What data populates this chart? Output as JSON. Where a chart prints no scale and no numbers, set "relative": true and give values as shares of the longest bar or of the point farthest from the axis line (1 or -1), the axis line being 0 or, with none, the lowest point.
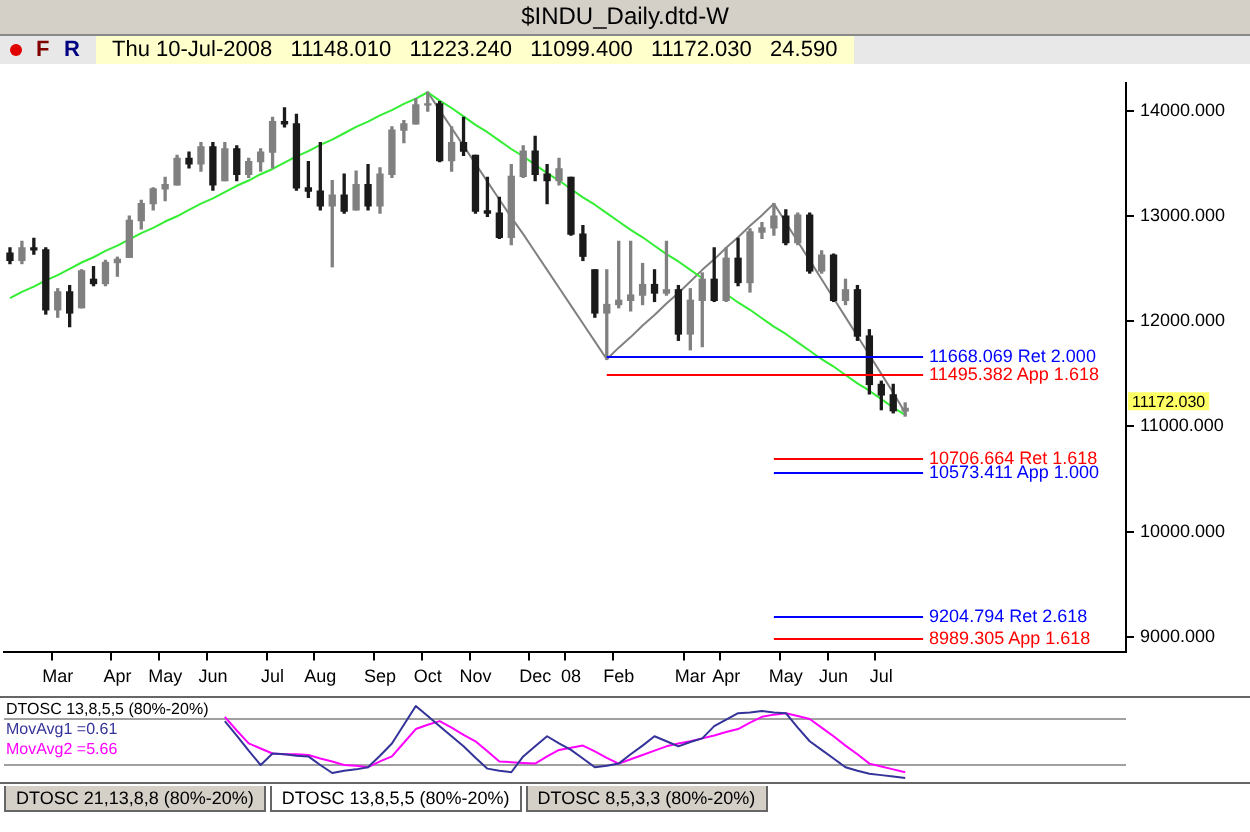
{
  "chart_data": [
    {
      "type": "candlestick",
      "title": "$INDU_Daily.dtd-W",
      "subtitle": "Thu 10-Jul-2008   11148.010   11223.240   11099.400   11172.030   24.590",
      "categories": [
        null,
        null,
        null,
        null,
        "Mar",
        null,
        null,
        null,
        null,
        "Apr",
        null,
        null,
        null,
        "May",
        null,
        null,
        null,
        "Jun",
        null,
        null,
        null,
        null,
        "Jul",
        null,
        null,
        null,
        "Aug",
        null,
        null,
        null,
        null,
        "Sep",
        null,
        null,
        null,
        "Oct",
        null,
        null,
        null,
        "Nov",
        null,
        null,
        null,
        null,
        "Dec",
        null,
        null,
        "08",
        null,
        null,
        null,
        "Feb",
        null,
        null,
        null,
        null,
        null,
        "Mar",
        null,
        null,
        "Apr",
        null,
        null,
        null,
        null,
        "May",
        null,
        null,
        null,
        "Jun",
        null,
        null,
        null,
        "Jul",
        null,
        null,
        null,
        null,
        null,
        null,
        null,
        null,
        null,
        null,
        null,
        null,
        null,
        null,
        null,
        null,
        null,
        null,
        null,
        null
      ],
      "ohlc": [
        [
          12650,
          12700,
          12550,
          12580
        ],
        [
          12580,
          12760,
          12550,
          12700
        ],
        [
          12700,
          12790,
          12640,
          12680
        ],
        [
          12680,
          12700,
          12070,
          12110
        ],
        [
          12110,
          12310,
          12040,
          12280
        ],
        [
          12280,
          12340,
          11950,
          12080
        ],
        [
          12130,
          12490,
          12130,
          12480
        ],
        [
          12400,
          12520,
          12340,
          12360
        ],
        [
          12360,
          12580,
          12340,
          12560
        ],
        [
          12560,
          12610,
          12430,
          12590
        ],
        [
          12610,
          13000,
          12610,
          12960
        ],
        [
          12960,
          13150,
          12880,
          13120
        ],
        [
          13120,
          13270,
          13060,
          13260
        ],
        [
          13260,
          13370,
          13150,
          13300
        ],
        [
          13300,
          13580,
          13300,
          13550
        ],
        [
          13550,
          13610,
          13460,
          13500
        ],
        [
          13500,
          13700,
          13430,
          13660
        ],
        [
          13660,
          13700,
          13250,
          13300
        ],
        [
          13340,
          13700,
          13340,
          13640
        ],
        [
          13640,
          13670,
          13340,
          13400
        ],
        [
          13400,
          13550,
          13370,
          13520
        ],
        [
          13520,
          13640,
          13430,
          13610
        ],
        [
          13610,
          13940,
          13460,
          13900
        ],
        [
          13900,
          14030,
          13850,
          13880
        ],
        [
          13880,
          13970,
          13250,
          13270
        ],
        [
          13270,
          13520,
          13180,
          13240
        ],
        [
          13240,
          13700,
          13060,
          13100
        ],
        [
          13100,
          13340,
          12520,
          13200
        ],
        [
          13200,
          13400,
          13030,
          13050
        ],
        [
          13060,
          13430,
          13060,
          13300
        ],
        [
          13300,
          13490,
          13060,
          13100
        ],
        [
          13100,
          13460,
          13030,
          13400
        ],
        [
          13400,
          13850,
          13370,
          13820
        ],
        [
          13820,
          13910,
          13700,
          13880
        ],
        [
          13880,
          14120,
          13880,
          14060
        ],
        [
          14060,
          14180,
          14000,
          14070
        ],
        [
          14070,
          14090,
          13520,
          13530
        ],
        [
          13530,
          13850,
          13430,
          13700
        ],
        [
          13700,
          13940,
          13580,
          13620
        ],
        [
          13580,
          13580,
          13030,
          13050
        ],
        [
          13050,
          13370,
          13000,
          13030
        ],
        [
          13030,
          13180,
          12790,
          12800
        ],
        [
          12800,
          13490,
          12730,
          13380
        ],
        [
          13380,
          13670,
          13370,
          13620
        ],
        [
          13620,
          13760,
          13340,
          13400
        ],
        [
          13400,
          13490,
          13120,
          13340
        ],
        [
          13340,
          13550,
          13300,
          13450
        ],
        [
          13370,
          13370,
          12820,
          12830
        ],
        [
          12830,
          12910,
          12580,
          12620
        ],
        [
          12490,
          12490,
          12040,
          12080
        ],
        [
          12080,
          12490,
          11640,
          12160
        ],
        [
          12160,
          12760,
          12130,
          12200
        ],
        [
          12200,
          12760,
          12100,
          12250
        ],
        [
          12250,
          12550,
          12160,
          12350
        ],
        [
          12350,
          12490,
          12190,
          12270
        ],
        [
          12270,
          12760,
          12250,
          12300
        ],
        [
          12300,
          12340,
          11820,
          11880
        ],
        [
          11880,
          12310,
          11730,
          12200
        ],
        [
          12200,
          12460,
          11760,
          12400
        ],
        [
          12400,
          12700,
          12190,
          12200
        ],
        [
          12200,
          12700,
          12190,
          12600
        ],
        [
          12600,
          12790,
          12340,
          12370
        ],
        [
          12370,
          12880,
          12280,
          12850
        ],
        [
          12850,
          12940,
          12790,
          12890
        ],
        [
          12890,
          13120,
          12820,
          13000
        ],
        [
          13000,
          13060,
          12730,
          12750
        ],
        [
          12750,
          13030,
          12730,
          13010
        ],
        [
          13010,
          13030,
          12460,
          12480
        ],
        [
          12480,
          12670,
          12460,
          12630
        ],
        [
          12630,
          12640,
          12190,
          12200
        ],
        [
          12200,
          12400,
          12160,
          12300
        ],
        [
          12300,
          12340,
          11820,
          11860
        ],
        [
          11860,
          11920,
          11310,
          11400
        ],
        [
          11400,
          11430,
          11160,
          11300
        ],
        [
          11300,
          11400,
          11130,
          11150
        ],
        [
          11148.01,
          11223.24,
          11099.4,
          11172.03
        ],
        null,
        null,
        null,
        null,
        null,
        null,
        null,
        null,
        null,
        null,
        null,
        null,
        null,
        null,
        null,
        null,
        null,
        null
      ],
      "colors": [
        "#1a1a1a",
        "#808080",
        "#1a1a1a",
        "#1a1a1a",
        "#808080",
        "#1a1a1a",
        "#808080",
        "#1a1a1a",
        "#808080",
        "#808080",
        "#808080",
        "#808080",
        "#808080",
        "#808080",
        "#808080",
        "#1a1a1a",
        "#808080",
        "#1a1a1a",
        "#808080",
        "#1a1a1a",
        "#808080",
        "#808080",
        "#808080",
        "#1a1a1a",
        "#1a1a1a",
        "#1a1a1a",
        "#1a1a1a",
        "#808080",
        "#1a1a1a",
        "#808080",
        "#1a1a1a",
        "#808080",
        "#808080",
        "#808080",
        "#808080",
        "#808080",
        "#1a1a1a",
        "#808080",
        "#1a1a1a",
        "#1a1a1a",
        "#1a1a1a",
        "#1a1a1a",
        "#808080",
        "#808080",
        "#1a1a1a",
        "#1a1a1a",
        "#808080",
        "#1a1a1a",
        "#1a1a1a",
        "#1a1a1a",
        "#808080",
        "#808080",
        "#808080",
        "#808080",
        "#1a1a1a",
        "#808080",
        "#1a1a1a",
        "#808080",
        "#808080",
        "#1a1a1a",
        "#808080",
        "#1a1a1a",
        "#808080",
        "#808080",
        "#808080",
        "#1a1a1a",
        "#808080",
        "#1a1a1a",
        "#808080",
        "#1a1a1a",
        "#808080",
        "#1a1a1a",
        "#1a1a1a",
        "#1a1a1a",
        "#1a1a1a",
        "#808080",
        null,
        null,
        null,
        null,
        null,
        null,
        null,
        null,
        null,
        null,
        null,
        null,
        null,
        null,
        null,
        null,
        null,
        null
      ],
      "ylim": [
        8850,
        14270
      ],
      "yticks": [
        {
          "value": 9000,
          "label": "9000.000"
        },
        {
          "value": 10000,
          "label": "10000.000"
        },
        {
          "value": 11000,
          "label": "11000.000"
        },
        {
          "value": 12000,
          "label": "12000.000"
        },
        {
          "value": 13000,
          "label": "13000.000"
        },
        {
          "value": 14000,
          "label": "14000.000"
        }
      ],
      "series": [
        {
          "type": "line",
          "color": "#33ee33",
          "values": [
            12220,
            12280,
            12330,
            12390,
            12440,
            12500,
            12560,
            12610,
            12670,
            12720,
            12780,
            12840,
            12890,
            12950,
            13000,
            13060,
            13120,
            13170,
            13230,
            13290,
            13340,
            13400,
            13450,
            13510,
            13570,
            13620,
            13680,
            13730,
            13790,
            13850,
            13900,
            13960,
            14010,
            14070,
            14120,
            14180,
            14100,
            14030,
            13950,
            13870,
            13800,
            13720,
            13640,
            13570,
            13490,
            13410,
            13340,
            13260,
            13180,
            13110,
            13030,
            12950,
            12870,
            12800,
            12720,
            12640,
            12570,
            12490,
            12410,
            null,
            12260,
            12180,
            12110,
            12030,
            11950,
            11880,
            11800,
            11720,
            11640,
            11570,
            11490,
            11410,
            11340,
            11260,
            11180,
            11110,
            null,
            null,
            null,
            null,
            null,
            null,
            null,
            null,
            null,
            null,
            null,
            null,
            null,
            null,
            null,
            null,
            null,
            null
          ]
        },
        {
          "type": "line",
          "color": "#808080",
          "values": [
            null,
            null,
            null,
            null,
            null,
            null,
            null,
            null,
            null,
            null,
            null,
            null,
            null,
            null,
            null,
            null,
            null,
            null,
            null,
            null,
            null,
            null,
            null,
            null,
            null,
            null,
            null,
            null,
            null,
            null,
            null,
            null,
            null,
            null,
            null,
            14180,
            14010,
            13840,
            13670,
            13500,
            13330,
            13160,
            12990,
            12830,
            12660,
            12490,
            12320,
            12150,
            11980,
            11810,
            11640,
            11750,
            11850,
            11960,
            12060,
            12170,
            12270,
            12380,
            12490,
            12590,
            12700,
            12800,
            12910,
            13010,
            13120,
            12940,
            12760,
            12580,
            12400,
            12220,
            12040,
            11860,
            11680,
            11500,
            11320,
            11130,
            null,
            null,
            null,
            null,
            null,
            null,
            null,
            null,
            null,
            null,
            null,
            null,
            null,
            null,
            null,
            null,
            null,
            null
          ]
        }
      ],
      "ref_lines": [
        {
          "axis": "y",
          "value": 11668.069,
          "label": "11668.069 Ret 2.000",
          "color": "#0000ff"
        },
        {
          "axis": "y",
          "value": 11495.382,
          "label": "11495.382 App 1.618",
          "color": "#ff0000"
        },
        {
          "axis": "y",
          "value": 10706.664,
          "label": "10706.664 Ret 1.618",
          "color": "#ff0000"
        },
        {
          "axis": "y",
          "value": 10573.411,
          "label": "10573.411 App 1.000",
          "color": "#0000ff"
        },
        {
          "axis": "y",
          "value": 9204.794,
          "label": "9204.794 Ret 2.618",
          "color": "#0000ff"
        },
        {
          "axis": "y",
          "value": 8989.305,
          "label": "8989.305 App 1.618",
          "color": "#ff0000"
        }
      ],
      "annotations": [
        "F",
        "R",
        "11172.030"
      ]
    },
    {
      "type": "line",
      "title": "DTOSC 13,8,5,5 (80%-20%)",
      "relative": true,
      "legend": "top left",
      "categories": [
        null,
        null,
        null,
        null,
        null,
        null,
        null,
        null,
        null,
        null,
        null,
        null,
        null,
        null,
        null,
        null,
        null,
        null,
        null,
        null,
        null,
        null,
        null,
        null,
        null,
        null,
        null,
        null,
        null,
        null,
        null,
        null,
        null,
        null,
        null,
        null,
        null,
        null,
        null,
        null,
        null,
        null,
        null,
        null,
        null,
        null,
        null,
        null,
        null,
        null,
        null,
        null,
        null,
        null,
        null,
        null,
        null,
        null,
        null,
        null,
        null,
        null,
        null,
        null,
        null,
        null,
        null,
        null,
        null,
        null,
        null,
        null,
        null,
        null,
        null,
        null,
        null,
        null,
        null,
        null,
        null,
        null,
        null,
        null,
        null,
        null,
        null,
        null,
        null,
        null,
        null,
        null,
        null,
        null
      ],
      "series": [
        {
          "name": "MovAvg1 =0.61",
          "color": "#333399",
          "values": [
            null,
            null,
            null,
            null,
            null,
            null,
            null,
            null,
            null,
            null,
            null,
            null,
            null,
            null,
            null,
            null,
            null,
            null,
            0.79,
            0.59,
            0.38,
            0.18,
            0.34,
            0.33,
            0.31,
            0.3,
            0.18,
            0.07,
            0.1,
            0.12,
            0.15,
            0.31,
            0.48,
            0.74,
            1,
            0.86,
            0.72,
            0.58,
            0.44,
            0.28,
            0.13,
            0.1,
            0.08,
            0.3,
            0.44,
            0.58,
            0.48,
            0.39,
            0.27,
            0.15,
            0.17,
            0.2,
            0.33,
            0.45,
            0.58,
            0.51,
            0.44,
            0.5,
            0.55,
            0.72,
            0.81,
            0.9,
            0.91,
            0.93,
            0.91,
            0.9,
            0.7,
            0.51,
            0.39,
            0.27,
            0.15,
            0.1,
            0.06,
            0.04,
            0.02,
            0,
            null,
            null,
            null,
            null,
            null,
            null,
            null,
            null,
            null,
            null,
            null,
            null,
            null,
            null,
            null,
            null,
            null,
            null
          ]
        },
        {
          "name": "MovAvg2 =5.66",
          "color": "#ff00ff",
          "values": [
            null,
            null,
            null,
            null,
            null,
            null,
            null,
            null,
            null,
            null,
            null,
            null,
            null,
            null,
            null,
            null,
            null,
            null,
            0.85,
            0.66,
            0.48,
            0.41,
            0.34,
            0.33,
            0.33,
            0.32,
            0.27,
            0.23,
            0.18,
            0.17,
            0.15,
            0.23,
            0.3,
            0.49,
            0.68,
            0.74,
            0.79,
            0.7,
            0.6,
            0.51,
            0.37,
            0.23,
            0.22,
            0.21,
            0.2,
            0.3,
            0.39,
            0.42,
            0.45,
            0.37,
            0.28,
            0.2,
            0.26,
            0.32,
            0.38,
            0.44,
            0.48,
            0.51,
            0.55,
            0.59,
            0.64,
            0.68,
            0.77,
            0.85,
            0.88,
            0.9,
            0.86,
            0.82,
            0.7,
            0.58,
            0.45,
            0.33,
            0.2,
            0.16,
            0.12,
            0.08,
            null,
            null,
            null,
            null,
            null,
            null,
            null,
            null,
            null,
            null,
            null,
            null,
            null,
            null,
            null,
            null,
            null,
            null
          ]
        }
      ],
      "ref_lines": [
        {
          "axis": "y",
          "value": 0.82,
          "label": null,
          "color": "#a0a0a0"
        },
        {
          "axis": "y",
          "value": 0.2,
          "label": null,
          "color": "#a0a0a0"
        }
      ],
      "annotations": [
        "DTOSC 21,13,8,8 (80%-20%)",
        "DTOSC 13,8,5,5 (80%-20%)",
        "DTOSC 8,5,3,3 (80%-20%)"
      ]
    }
  ]
}
